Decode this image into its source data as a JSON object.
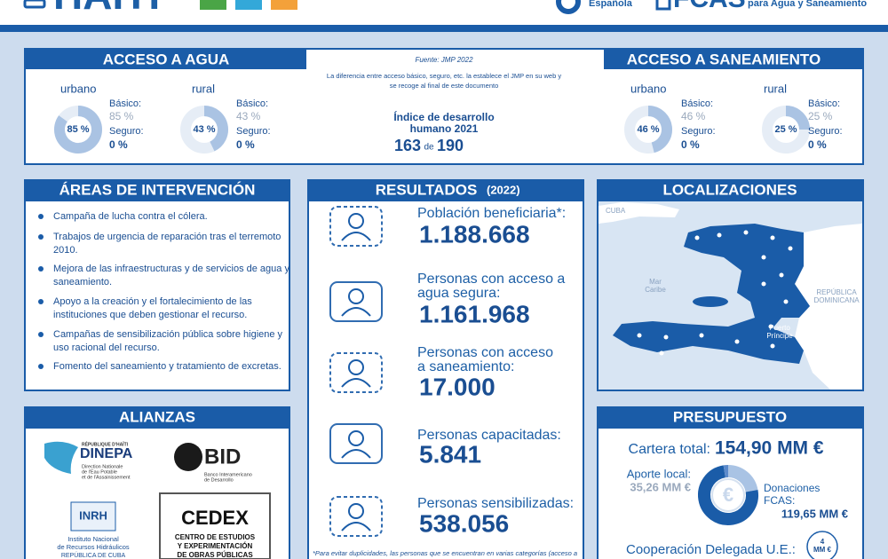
{
  "header": {
    "title": "HAITI",
    "partner_1": "Española",
    "partner_2_title": "FCAS",
    "partner_2_subtitle": "para Agua y Saneamiento"
  },
  "access": {
    "water": {
      "title": "ACCESO A AGUA",
      "groups": [
        {
          "area": "urbano",
          "donut": {
            "value": 85,
            "label": "85 %"
          },
          "basic_label": "Básico:",
          "basic": "85 %",
          "safe_label": "Seguro:",
          "safe": "0 %"
        },
        {
          "area": "rural",
          "donut": {
            "value": 43,
            "label": "43 %"
          },
          "basic_label": "Básico:",
          "basic": "43 %",
          "safe_label": "Seguro:",
          "safe": "0 %"
        }
      ]
    },
    "sanitation": {
      "title": "ACCESO A SANEAMIENTO",
      "groups": [
        {
          "area": "urbano",
          "donut": {
            "value": 46,
            "label": "46 %"
          },
          "basic_label": "Básico:",
          "basic": "46 %",
          "safe_label": "Seguro:",
          "safe": "0 %"
        },
        {
          "area": "rural",
          "donut": {
            "value": 25,
            "label": "25 %"
          },
          "basic_label": "Básico:",
          "basic": "25 %",
          "safe_label": "Seguro:",
          "safe": "0 %"
        }
      ]
    },
    "source": "Fuente: JMP 2022",
    "note_lines": [
      "La diferencia entre acceso básico, seguro, etc. la establece el JMP en su web y",
      "se recoge al final de este documento"
    ],
    "hdi_lines": [
      "Índice de desarrollo",
      "humano 2021"
    ],
    "hdi_rank": "163",
    "hdi_of": "de",
    "hdi_total": "190"
  },
  "areas": {
    "title": "ÁREAS DE INTERVENCIÓN",
    "items": [
      [
        "Campaña de lucha contra el cólera."
      ],
      [
        "Trabajos de urgencia de reparación tras el terremoto",
        "2010."
      ],
      [
        "Mejora de las infraestructuras y de servicios de agua y",
        "saneamiento."
      ],
      [
        "Apoyo a la creación y el fortalecimiento de las",
        "instituciones que deben gestionar el recurso."
      ],
      [
        "Campañas de sensibilización pública sobre  higiene y",
        "uso racional del recurso."
      ],
      [
        "Fomento del saneamiento y tratamiento de excretas."
      ]
    ]
  },
  "results": {
    "title": "RESULTADOS",
    "year": "(2022)",
    "items": [
      {
        "lines": [
          "Población beneficiaria*:"
        ],
        "value": "1.188.668"
      },
      {
        "lines": [
          "Personas con acceso a",
          "agua segura:"
        ],
        "value": "1.161.968"
      },
      {
        "lines": [
          "Personas con acceso",
          "a saneamiento:"
        ],
        "value": "17.000"
      },
      {
        "lines": [
          "Personas capacitadas:"
        ],
        "value": "5.841"
      },
      {
        "lines": [
          "Personas sensibilizadas:"
        ],
        "value": "538.056"
      }
    ],
    "footnote": "*Para evitar duplicidades, las personas que se encuentran en varias categorías (acceso a"
  },
  "locations": {
    "title": "LOCALIZACIONES",
    "labels": {
      "cuba": "CUBA",
      "sea_lines": [
        "Mar",
        "Caribe"
      ],
      "dr_lines": [
        "REPÚBLICA",
        "DOMINICANA"
      ],
      "capital_lines": [
        "Puerto",
        "Príncipe"
      ]
    }
  },
  "alliances": {
    "title": "ALIANZAS",
    "dinepa": {
      "top": "RÉPUBLIQUE D'HAÏTI",
      "name": "DINEPA",
      "lines": [
        "Direction Nationale",
        "de l'Eau Potable",
        "et de l'Assainissement"
      ]
    },
    "bid": {
      "name": "BID",
      "lines": [
        "Banco Interamericano",
        "de Desarrollo"
      ]
    },
    "inrh": {
      "name": "INRH",
      "lines": [
        "Instituto Nacional",
        "de Recursos Hidráulicos",
        "REPÚBLICA DE CUBA"
      ]
    },
    "cedex": {
      "name": "CEDEX",
      "lines": [
        "CENTRO DE ESTUDIOS",
        "Y EXPERIMENTACIÓN",
        "DE OBRAS PÚBLICAS"
      ]
    }
  },
  "budget": {
    "title": "PRESUPUESTO",
    "total_label": "Cartera total:",
    "total": "154,90 MM €",
    "local_label": "Aporte local:",
    "local": {
      "value": 35.26,
      "label": "35,26 MM €"
    },
    "fcas_lines": [
      "Donaciones",
      "FCAS:"
    ],
    "fcas": {
      "value": 119.65,
      "label": "119,65 MM €"
    },
    "icon": "€",
    "eu_label": "Cooperación Delegada U.E.:",
    "eu": {
      "value": 4,
      "label_lines": [
        "4",
        "MM €"
      ]
    }
  }
}
